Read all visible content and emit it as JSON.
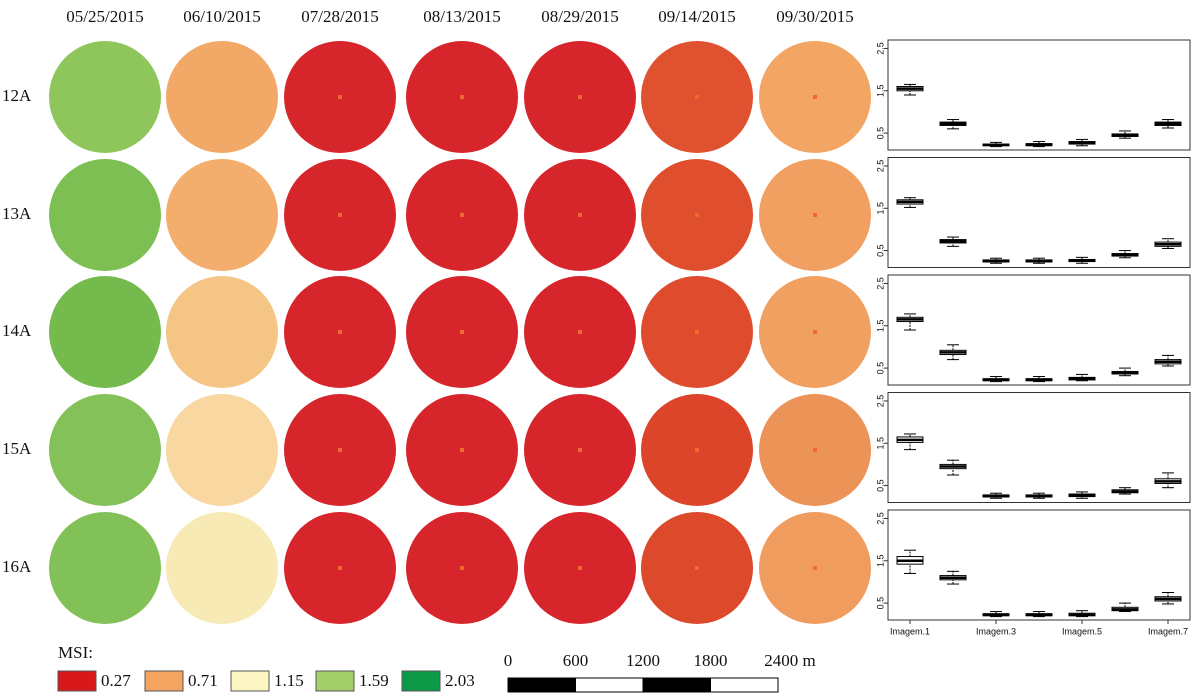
{
  "dates": [
    "05/25/2015",
    "06/10/2015",
    "07/28/2015",
    "08/13/2015",
    "08/29/2015",
    "09/14/2015",
    "09/30/2015"
  ],
  "rows": [
    {
      "label": "12A",
      "colors": [
        "#8fc65c",
        "#f2a866",
        "#d7262b",
        "#d7262b",
        "#d7262b",
        "#e0522f",
        "#f3a663"
      ]
    },
    {
      "label": "13A",
      "colors": [
        "#7dbf52",
        "#f3ad6c",
        "#d7262b",
        "#d7262b",
        "#d7262b",
        "#df4f2e",
        "#f1a062"
      ]
    },
    {
      "label": "14A",
      "colors": [
        "#74ba4d",
        "#f5c586",
        "#d7262b",
        "#d7262b",
        "#d7262b",
        "#df4c2d",
        "#f0a061"
      ]
    },
    {
      "label": "15A",
      "colors": [
        "#84c159",
        "#f8d7a0",
        "#d7262b",
        "#d7262b",
        "#d7262b",
        "#dc4529",
        "#ec9358"
      ]
    },
    {
      "label": "16A",
      "colors": [
        "#82c157",
        "#f7eab4",
        "#d7262b",
        "#d7262b",
        "#d7262b",
        "#dd4a2b",
        "#ef9c5e"
      ]
    }
  ],
  "legend": {
    "title": "MSI:",
    "items": [
      {
        "label": "0.27",
        "color": "#d7191c"
      },
      {
        "label": "0.71",
        "color": "#f4a460"
      },
      {
        "label": "1.15",
        "color": "#fbf6c4"
      },
      {
        "label": "1.59",
        "color": "#a3d06a"
      },
      {
        "label": "2.03",
        "color": "#0c9a48"
      }
    ]
  },
  "scale_bar": {
    "ticks": [
      0,
      600,
      1200,
      1800,
      {
        "value": 2400,
        "label": "2400 m"
      }
    ],
    "lim": [
      0,
      2400
    ]
  },
  "chart_data": [
    {
      "type": "box",
      "ylim": [
        0.1,
        2.7
      ],
      "yticks": [
        0.5,
        1.5,
        2.5
      ],
      "low": [
        1.4,
        0.6,
        0.18,
        0.18,
        0.2,
        0.38,
        0.62
      ],
      "q1": [
        1.5,
        0.68,
        0.2,
        0.2,
        0.24,
        0.42,
        0.68
      ],
      "median": [
        1.55,
        0.72,
        0.22,
        0.23,
        0.27,
        0.45,
        0.72
      ],
      "q3": [
        1.6,
        0.76,
        0.24,
        0.25,
        0.3,
        0.48,
        0.76
      ],
      "high": [
        1.65,
        0.82,
        0.28,
        0.3,
        0.35,
        0.55,
        0.82
      ]
    },
    {
      "type": "box",
      "ylim": [
        0.1,
        2.7
      ],
      "yticks": [
        0.5,
        1.5,
        2.5
      ],
      "low": [
        1.52,
        0.6,
        0.2,
        0.2,
        0.2,
        0.33,
        0.55
      ],
      "q1": [
        1.6,
        0.68,
        0.23,
        0.23,
        0.24,
        0.37,
        0.6
      ],
      "median": [
        1.65,
        0.72,
        0.25,
        0.25,
        0.26,
        0.4,
        0.65
      ],
      "q3": [
        1.7,
        0.76,
        0.28,
        0.28,
        0.29,
        0.43,
        0.7
      ],
      "high": [
        1.75,
        0.82,
        0.32,
        0.32,
        0.34,
        0.5,
        0.78
      ]
    },
    {
      "type": "box",
      "ylim": [
        0.1,
        2.7
      ],
      "yticks": [
        0.5,
        1.5,
        2.5
      ],
      "low": [
        1.4,
        0.7,
        0.18,
        0.18,
        0.2,
        0.32,
        0.55
      ],
      "q1": [
        1.6,
        0.82,
        0.2,
        0.2,
        0.22,
        0.36,
        0.6
      ],
      "median": [
        1.65,
        0.87,
        0.22,
        0.22,
        0.25,
        0.38,
        0.65
      ],
      "q3": [
        1.7,
        0.92,
        0.25,
        0.25,
        0.28,
        0.42,
        0.7
      ],
      "high": [
        1.78,
        1.05,
        0.3,
        0.3,
        0.35,
        0.5,
        0.8
      ]
    },
    {
      "type": "box",
      "ylim": [
        0.1,
        2.7
      ],
      "yticks": [
        0.5,
        1.5,
        2.5
      ],
      "low": [
        1.35,
        0.75,
        0.2,
        0.2,
        0.2,
        0.3,
        0.45
      ],
      "q1": [
        1.52,
        0.9,
        0.23,
        0.23,
        0.24,
        0.33,
        0.55
      ],
      "median": [
        1.58,
        0.95,
        0.25,
        0.25,
        0.27,
        0.36,
        0.6
      ],
      "q3": [
        1.65,
        1.0,
        0.28,
        0.28,
        0.3,
        0.4,
        0.66
      ],
      "high": [
        1.72,
        1.1,
        0.32,
        0.32,
        0.35,
        0.45,
        0.8
      ]
    },
    {
      "type": "box",
      "ylim": [
        0.1,
        2.7
      ],
      "yticks": [
        0.5,
        1.5,
        2.5
      ],
      "categories": [
        "Imagem.1",
        null,
        "Imagem.3",
        null,
        "Imagem.5",
        null,
        "Imagem.7"
      ],
      "low": [
        1.2,
        0.95,
        0.18,
        0.18,
        0.18,
        0.3,
        0.48
      ],
      "q1": [
        1.42,
        1.05,
        0.2,
        0.2,
        0.2,
        0.32,
        0.55
      ],
      "median": [
        1.5,
        1.1,
        0.22,
        0.22,
        0.22,
        0.35,
        0.6
      ],
      "q3": [
        1.6,
        1.15,
        0.25,
        0.25,
        0.26,
        0.4,
        0.65
      ],
      "high": [
        1.75,
        1.25,
        0.3,
        0.3,
        0.32,
        0.5,
        0.75
      ]
    }
  ]
}
